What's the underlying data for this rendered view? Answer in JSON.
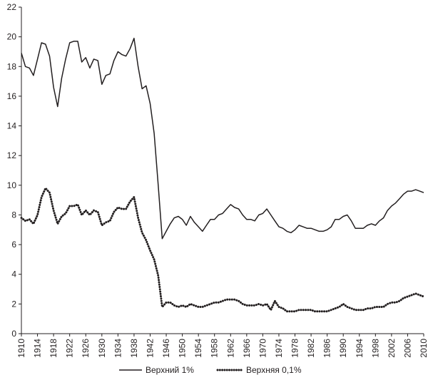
{
  "chart_data": {
    "type": "line",
    "title": "",
    "xlabel": "",
    "ylabel": "",
    "xlim": [
      1910,
      2010
    ],
    "ylim": [
      0,
      22
    ],
    "y_ticks": [
      0,
      2,
      4,
      6,
      8,
      10,
      12,
      14,
      16,
      18,
      20,
      22
    ],
    "x_ticks": [
      1910,
      1914,
      1918,
      1922,
      1926,
      1930,
      1934,
      1938,
      1942,
      1946,
      1950,
      1954,
      1958,
      1962,
      1966,
      1970,
      1974,
      1978,
      1982,
      1986,
      1990,
      1994,
      1998,
      2002,
      2006,
      2010
    ],
    "grid": false,
    "legend_position": "bottom",
    "series": [
      {
        "name": "Верхний 1%",
        "style": "solid",
        "color": "#231f20",
        "x": [
          1910,
          1911,
          1912,
          1913,
          1914,
          1915,
          1916,
          1917,
          1918,
          1919,
          1920,
          1921,
          1922,
          1923,
          1924,
          1925,
          1926,
          1927,
          1928,
          1929,
          1930,
          1931,
          1932,
          1933,
          1934,
          1935,
          1936,
          1937,
          1938,
          1939,
          1940,
          1941,
          1942,
          1943,
          1944,
          1945,
          1946,
          1947,
          1948,
          1949,
          1950,
          1951,
          1952,
          1953,
          1954,
          1955,
          1956,
          1957,
          1958,
          1959,
          1960,
          1961,
          1962,
          1963,
          1964,
          1965,
          1966,
          1967,
          1968,
          1969,
          1970,
          1971,
          1972,
          1973,
          1974,
          1975,
          1976,
          1977,
          1978,
          1979,
          1980,
          1981,
          1982,
          1983,
          1984,
          1985,
          1986,
          1987,
          1988,
          1989,
          1990,
          1991,
          1992,
          1993,
          1994,
          1995,
          1996,
          1997,
          1998,
          1999,
          2000,
          2001,
          2002,
          2003,
          2004,
          2005,
          2006,
          2007,
          2008,
          2009,
          2010
        ],
        "values": [
          18.9,
          18.0,
          17.9,
          17.4,
          18.5,
          19.6,
          19.5,
          18.7,
          16.6,
          15.3,
          17.2,
          18.5,
          19.6,
          19.7,
          19.7,
          18.3,
          18.6,
          17.9,
          18.5,
          18.4,
          16.8,
          17.4,
          17.5,
          18.4,
          19.0,
          18.8,
          18.7,
          19.2,
          19.9,
          18.0,
          16.5,
          16.7,
          15.5,
          13.5,
          10.0,
          6.4,
          6.9,
          7.4,
          7.8,
          7.9,
          7.7,
          7.3,
          7.9,
          7.5,
          7.2,
          6.9,
          7.3,
          7.7,
          7.7,
          8.0,
          8.1,
          8.4,
          8.7,
          8.5,
          8.4,
          8.0,
          7.7,
          7.7,
          7.6,
          8.0,
          8.1,
          8.4,
          8.0,
          7.6,
          7.2,
          7.1,
          6.9,
          6.8,
          7.0,
          7.3,
          7.2,
          7.1,
          7.1,
          7.0,
          6.9,
          6.9,
          7.0,
          7.2,
          7.7,
          7.7,
          7.9,
          8.0,
          7.6,
          7.1,
          7.1,
          7.1,
          7.3,
          7.4,
          7.3,
          7.6,
          7.8,
          8.3,
          8.6,
          8.8,
          9.1,
          9.4,
          9.6,
          9.6,
          9.7,
          9.6,
          9.5
        ]
      },
      {
        "name": "Верхняя 0,1%",
        "style": "dotted",
        "color": "#231f20",
        "x": [
          1910,
          1911,
          1912,
          1913,
          1914,
          1915,
          1916,
          1917,
          1918,
          1919,
          1920,
          1921,
          1922,
          1923,
          1924,
          1925,
          1926,
          1927,
          1928,
          1929,
          1930,
          1931,
          1932,
          1933,
          1934,
          1935,
          1936,
          1937,
          1938,
          1939,
          1940,
          1941,
          1942,
          1943,
          1944,
          1945,
          1946,
          1947,
          1948,
          1949,
          1950,
          1951,
          1952,
          1953,
          1954,
          1955,
          1956,
          1957,
          1958,
          1959,
          1960,
          1961,
          1962,
          1963,
          1964,
          1965,
          1966,
          1967,
          1968,
          1969,
          1970,
          1971,
          1972,
          1973,
          1974,
          1975,
          1976,
          1977,
          1978,
          1979,
          1980,
          1981,
          1982,
          1983,
          1984,
          1985,
          1986,
          1987,
          1988,
          1989,
          1990,
          1991,
          1992,
          1993,
          1994,
          1995,
          1996,
          1997,
          1998,
          1999,
          2000,
          2001,
          2002,
          2003,
          2004,
          2005,
          2006,
          2007,
          2008,
          2009,
          2010
        ],
        "values": [
          7.8,
          7.6,
          7.7,
          7.4,
          8.0,
          9.2,
          9.8,
          9.5,
          8.3,
          7.4,
          7.9,
          8.1,
          8.6,
          8.6,
          8.7,
          8.0,
          8.3,
          8.0,
          8.3,
          8.2,
          7.3,
          7.5,
          7.6,
          8.2,
          8.5,
          8.4,
          8.4,
          8.9,
          9.2,
          7.8,
          6.8,
          6.3,
          5.6,
          5.0,
          3.9,
          1.8,
          2.1,
          2.1,
          1.9,
          1.8,
          1.9,
          1.8,
          2.0,
          1.9,
          1.8,
          1.8,
          1.9,
          2.0,
          2.1,
          2.1,
          2.2,
          2.3,
          2.3,
          2.3,
          2.2,
          2.0,
          1.9,
          1.9,
          1.9,
          2.0,
          1.9,
          2.0,
          1.6,
          2.2,
          1.8,
          1.7,
          1.5,
          1.5,
          1.5,
          1.6,
          1.6,
          1.6,
          1.6,
          1.5,
          1.5,
          1.5,
          1.5,
          1.6,
          1.7,
          1.8,
          2.0,
          1.8,
          1.7,
          1.6,
          1.6,
          1.6,
          1.7,
          1.7,
          1.8,
          1.8,
          1.8,
          2.0,
          2.1,
          2.1,
          2.2,
          2.4,
          2.5,
          2.6,
          2.7,
          2.6,
          2.5
        ]
      }
    ]
  }
}
